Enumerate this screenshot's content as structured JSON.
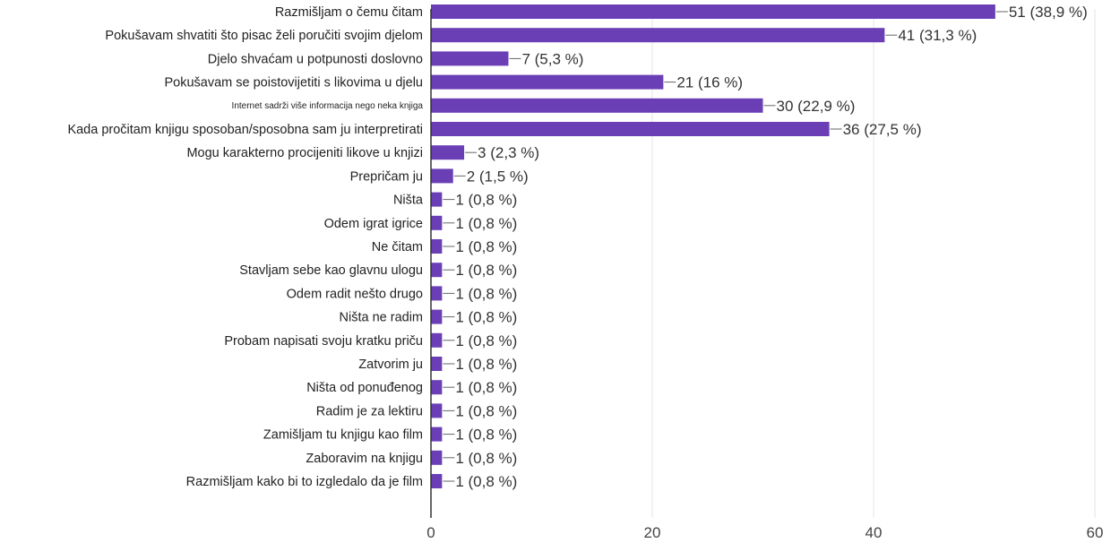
{
  "colors": {
    "bar": "#6a3fb5",
    "grid": "#e6e6e6",
    "axis": "#333333",
    "label": "#222222",
    "value": "#333333",
    "tick": "#444444"
  },
  "chart_data": {
    "type": "bar",
    "orientation": "horizontal",
    "grid": true,
    "xlim": [
      0,
      60
    ],
    "xticks": [
      "0",
      "20",
      "40",
      "60"
    ],
    "categories": [
      "Razmišljam o čemu čitam",
      "Pokušavam shvatiti što pisac želi poručiti svojim djelom",
      "Djelo shvaćam u potpunosti doslovno",
      "Pokušavam se poistovijetiti s likovima u djelu",
      "Internet sadrži više informacija nego neka knjiga",
      "Kada pročitam knjigu sposoban/sposobna sam ju interpretirati",
      "Mogu karakterno procijeniti likove u knjizi",
      "Prepričam ju",
      "Ništa",
      "Odem igrat igrice",
      "Ne čitam",
      "Stavljam sebe kao glavnu ulogu",
      "Odem radit nešto drugo",
      "Ništa ne radim",
      "Probam napisati svoju kratku priču",
      "Zatvorim ju",
      "Ništa od ponuđenog",
      "Radim je za lektiru",
      "Zamišljam tu knjigu kao film",
      "Zaboravim na knjigu",
      "Razmišljam kako bi to izgledalo da je film"
    ],
    "values": [
      51,
      41,
      7,
      21,
      30,
      36,
      3,
      2,
      1,
      1,
      1,
      1,
      1,
      1,
      1,
      1,
      1,
      1,
      1,
      1,
      1
    ],
    "value_labels": [
      "51 (38,9 %)",
      "41 (31,3 %)",
      "7 (5,3 %)",
      "21 (16 %)",
      "30 (22,9 %)",
      "36 (27,5 %)",
      "3 (2,3 %)",
      "2 (1,5 %)",
      "1 (0,8 %)",
      "1 (0,8 %)",
      "1 (0,8 %)",
      "1 (0,8 %)",
      "1 (0,8 %)",
      "1 (0,8 %)",
      "1 (0,8 %)",
      "1 (0,8 %)",
      "1 (0,8 %)",
      "1 (0,8 %)",
      "1 (0,8 %)",
      "1 (0,8 %)",
      "1 (0,8 %)"
    ],
    "small_label_indices": [
      4
    ]
  }
}
